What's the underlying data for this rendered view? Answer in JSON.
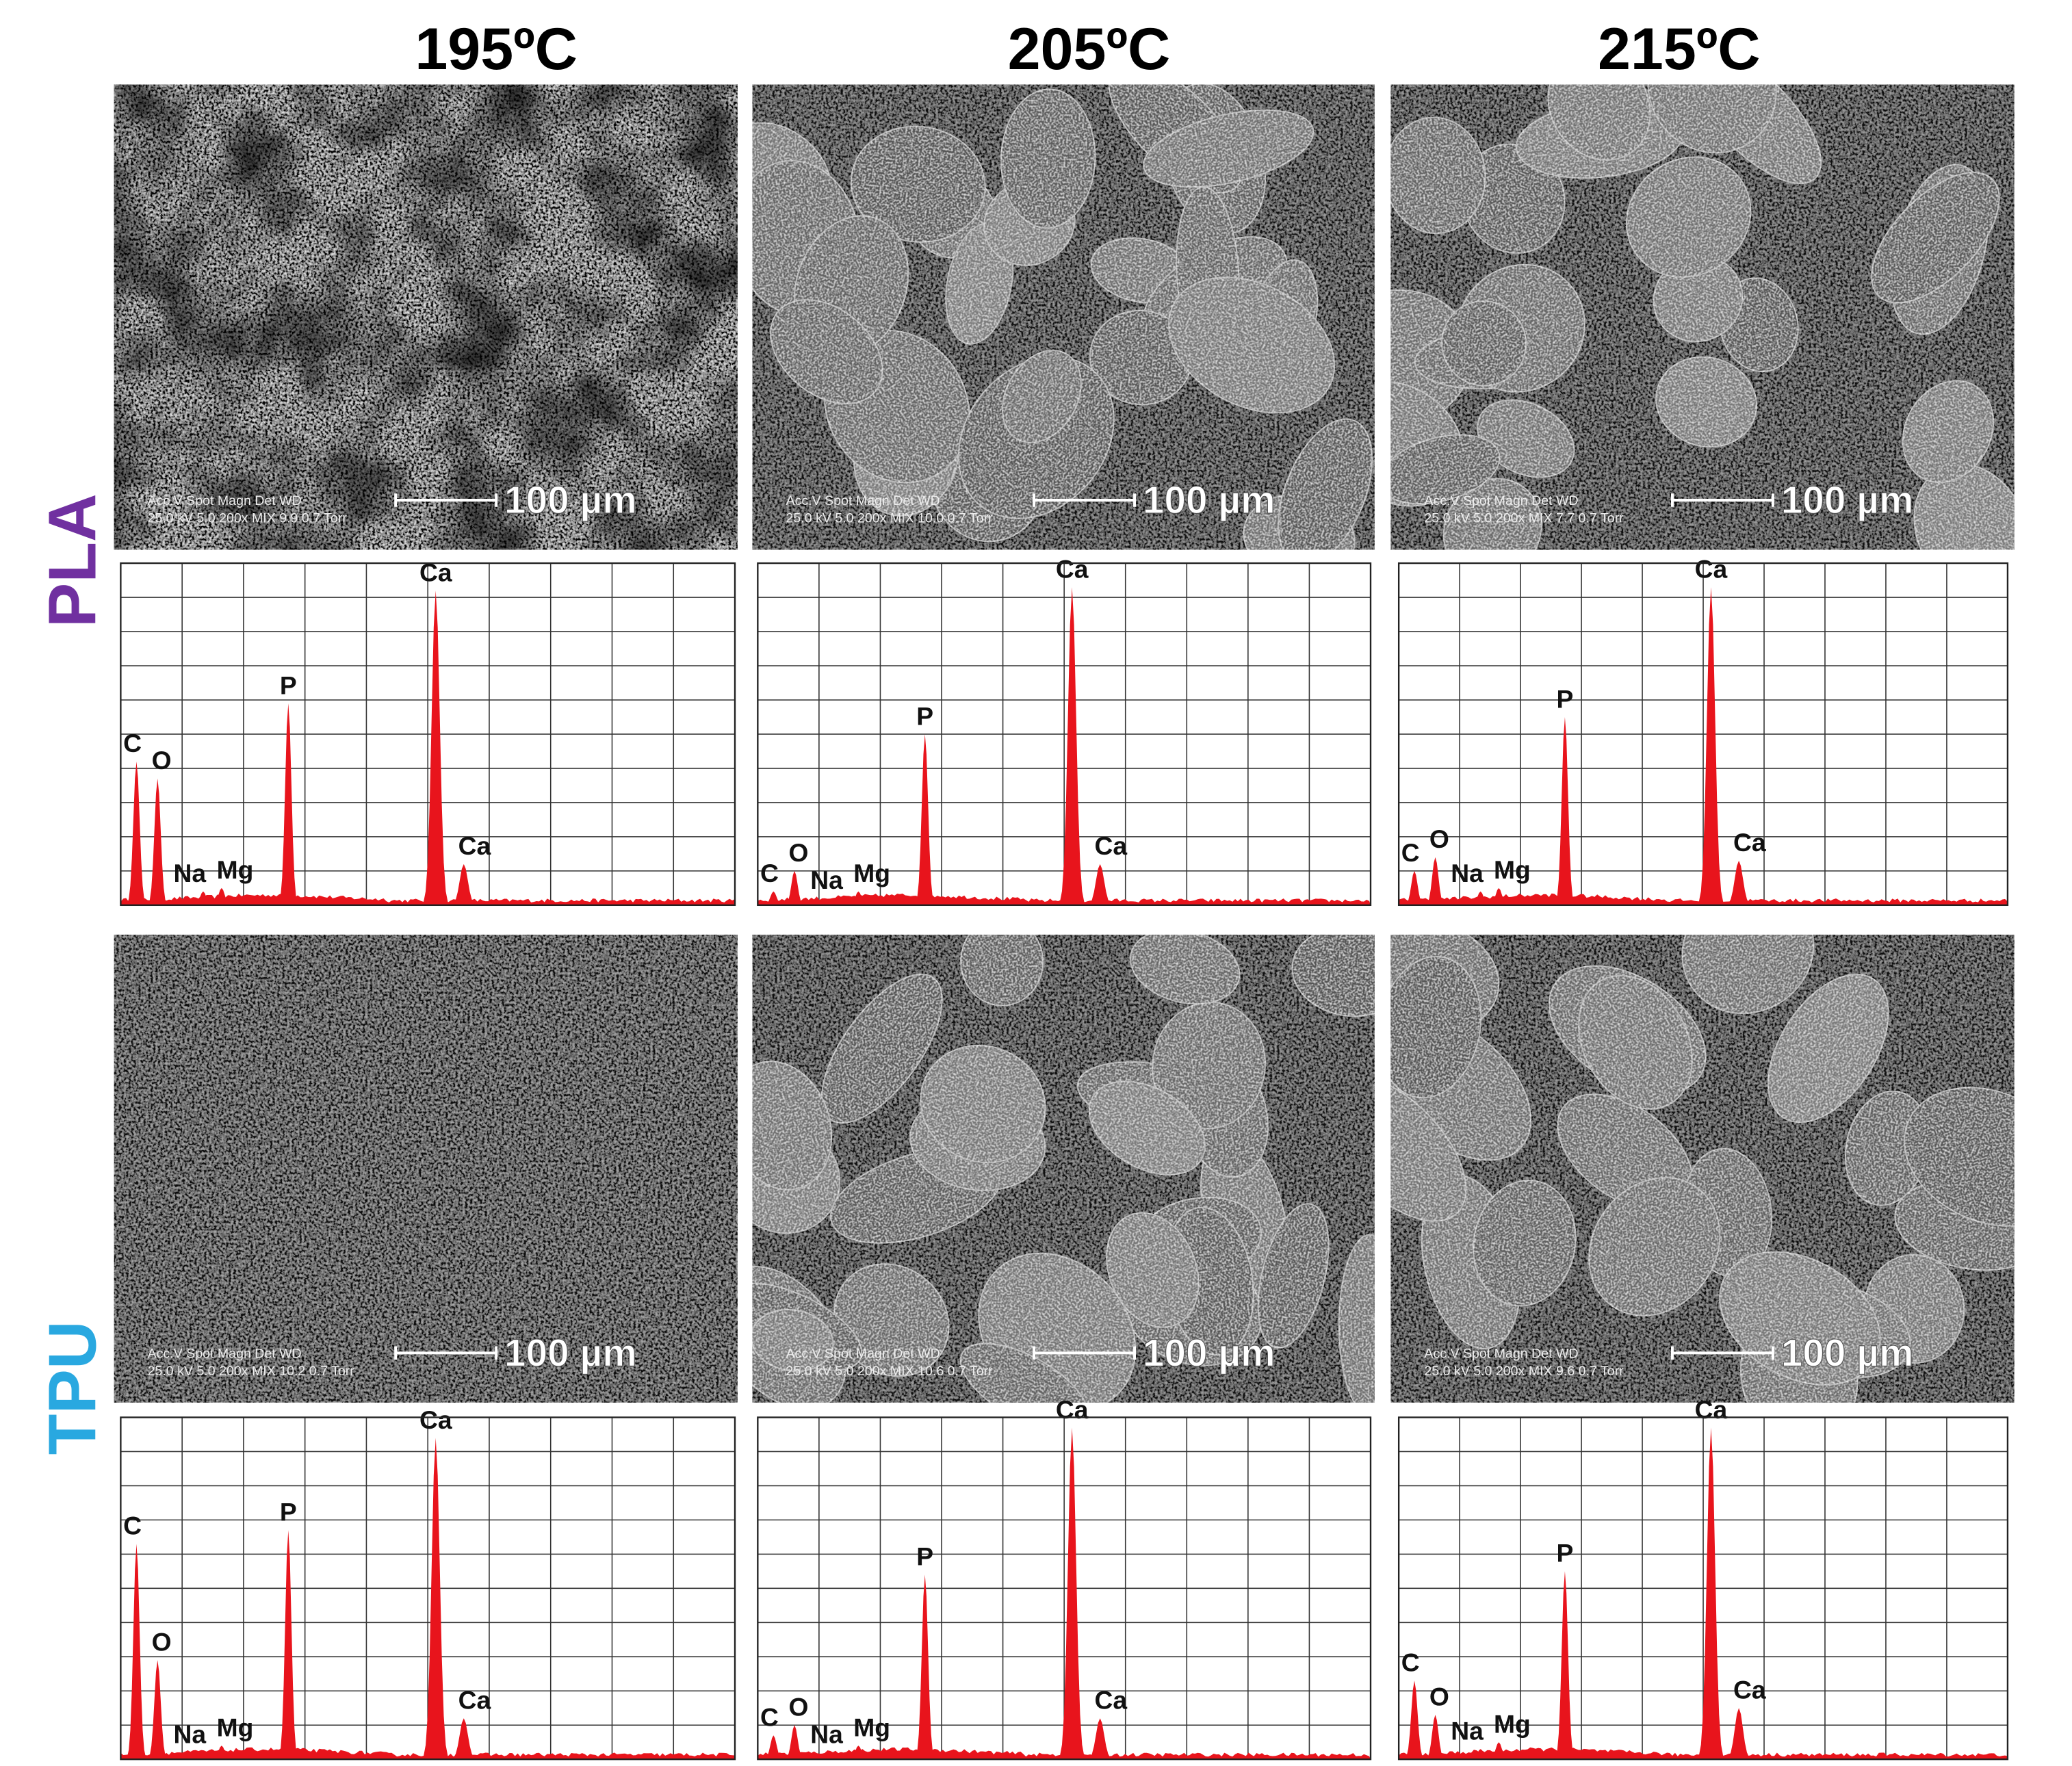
{
  "column_headers": [
    "195ºC",
    "205ºC",
    "215ºC"
  ],
  "spectrum_axes": {
    "xlim": [
      0.1,
      7.1
    ],
    "ylim": [
      0,
      100
    ],
    "xticks": [
      0.1,
      0.8,
      1.5,
      2.2,
      2.9,
      3.6,
      4.3,
      5,
      5.7,
      6.4,
      7.1
    ],
    "yticks": [
      0,
      10,
      20,
      30,
      40,
      50,
      60,
      70,
      80,
      90,
      100
    ],
    "grid": true,
    "color": "#e8141c"
  },
  "rows": [
    {
      "label": "PLA",
      "color": "#7030a0",
      "panels": [
        {
          "sem": {
            "info_header": "Acc.V  Spot Magn   Det  WD",
            "info_values": "25.0 kV 5.0  200x   MIX  9.9   0.7 Torr",
            "scale_bar": "100 µm"
          },
          "spectrum": {
            "peaks": [
              {
                "element": "C",
                "x": 0.28,
                "height": 42
              },
              {
                "element": "O",
                "x": 0.52,
                "height": 37
              },
              {
                "element": "Na",
                "x": 1.04,
                "height": 4
              },
              {
                "element": "Mg",
                "x": 1.25,
                "height": 5
              },
              {
                "element": "P",
                "x": 2.01,
                "height": 59
              },
              {
                "element": "Ca",
                "x": 3.69,
                "height": 92
              },
              {
                "element": "Ca",
                "x": 4.01,
                "height": 12
              }
            ]
          }
        },
        {
          "sem": {
            "info_header": "Acc.V  Spot Magn   Det  WD",
            "info_values": "25.0 kV 5.0  200x   MIX  10.0  0.7 Torr",
            "scale_bar": "100 µm"
          },
          "spectrum": {
            "peaks": [
              {
                "element": "C",
                "x": 0.28,
                "height": 4
              },
              {
                "element": "O",
                "x": 0.52,
                "height": 10
              },
              {
                "element": "Na",
                "x": 1.04,
                "height": 2
              },
              {
                "element": "Mg",
                "x": 1.25,
                "height": 4
              },
              {
                "element": "P",
                "x": 2.01,
                "height": 50
              },
              {
                "element": "Ca",
                "x": 3.69,
                "height": 93
              },
              {
                "element": "Ca",
                "x": 4.01,
                "height": 12
              }
            ]
          }
        },
        {
          "sem": {
            "info_header": "Acc.V  Spot Magn   Det  WD",
            "info_values": "25.0 kV 5.0  200x   MIX  7.7   0.7 Torr",
            "scale_bar": "100 µm"
          },
          "spectrum": {
            "peaks": [
              {
                "element": "C",
                "x": 0.28,
                "height": 10
              },
              {
                "element": "O",
                "x": 0.52,
                "height": 14
              },
              {
                "element": "Na",
                "x": 1.04,
                "height": 4
              },
              {
                "element": "Mg",
                "x": 1.25,
                "height": 5
              },
              {
                "element": "P",
                "x": 2.01,
                "height": 55
              },
              {
                "element": "Ca",
                "x": 3.69,
                "height": 93
              },
              {
                "element": "Ca",
                "x": 4.01,
                "height": 13
              }
            ]
          }
        }
      ]
    },
    {
      "label": "TPU",
      "color": "#29a8e0",
      "panels": [
        {
          "sem": {
            "info_header": "Acc.V  Spot Magn   Det  WD",
            "info_values": "25.0 kV 5.0  200x   MIX  10.2  0.7 Torr",
            "scale_bar": "100 µm"
          },
          "spectrum": {
            "peaks": [
              {
                "element": "C",
                "x": 0.28,
                "height": 63
              },
              {
                "element": "O",
                "x": 0.52,
                "height": 29
              },
              {
                "element": "Na",
                "x": 1.04,
                "height": 2
              },
              {
                "element": "Mg",
                "x": 1.25,
                "height": 4
              },
              {
                "element": "P",
                "x": 2.01,
                "height": 67
              },
              {
                "element": "Ca",
                "x": 3.69,
                "height": 94
              },
              {
                "element": "Ca",
                "x": 4.01,
                "height": 12
              }
            ]
          }
        },
        {
          "sem": {
            "info_header": "Acc.V  Spot Magn   Det  WD",
            "info_values": "25.0 kV 5.0  200x   MIX  10.6  0.7 Torr",
            "scale_bar": "100 µm"
          },
          "spectrum": {
            "peaks": [
              {
                "element": "C",
                "x": 0.28,
                "height": 7
              },
              {
                "element": "O",
                "x": 0.52,
                "height": 10
              },
              {
                "element": "Na",
                "x": 1.04,
                "height": 2
              },
              {
                "element": "Mg",
                "x": 1.25,
                "height": 4
              },
              {
                "element": "P",
                "x": 2.01,
                "height": 54
              },
              {
                "element": "Ca",
                "x": 3.69,
                "height": 97
              },
              {
                "element": "Ca",
                "x": 4.01,
                "height": 12
              }
            ]
          }
        },
        {
          "sem": {
            "info_header": "Acc.V  Spot Magn   Det  WD",
            "info_values": "25.0 kV 5.0  200x   MIX  9.6   0.7 Torr",
            "scale_bar": "100 µm"
          },
          "spectrum": {
            "peaks": [
              {
                "element": "C",
                "x": 0.28,
                "height": 23
              },
              {
                "element": "O",
                "x": 0.52,
                "height": 13
              },
              {
                "element": "Na",
                "x": 1.04,
                "height": 3
              },
              {
                "element": "Mg",
                "x": 1.25,
                "height": 5
              },
              {
                "element": "P",
                "x": 2.01,
                "height": 55
              },
              {
                "element": "Ca",
                "x": 3.69,
                "height": 97
              },
              {
                "element": "Ca",
                "x": 4.01,
                "height": 15
              }
            ]
          }
        }
      ]
    }
  ]
}
